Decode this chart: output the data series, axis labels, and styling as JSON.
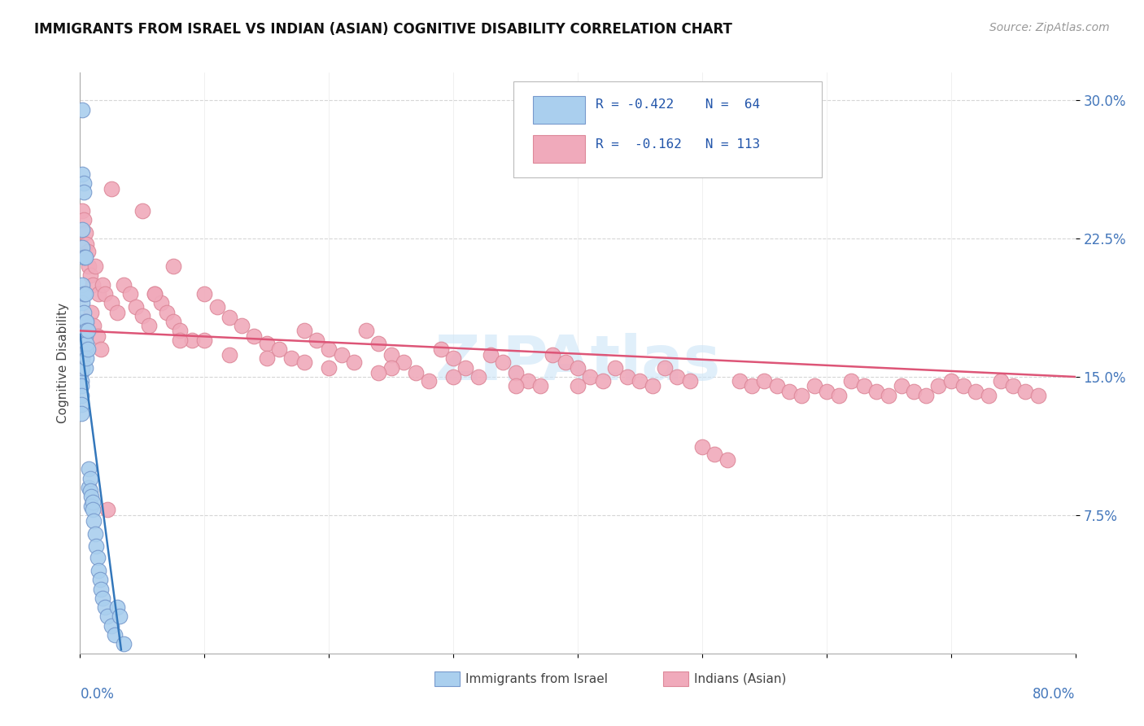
{
  "title": "IMMIGRANTS FROM ISRAEL VS INDIAN (ASIAN) COGNITIVE DISABILITY CORRELATION CHART",
  "source": "Source: ZipAtlas.com",
  "ylabel": "Cognitive Disability",
  "xrange": [
    0.0,
    0.8
  ],
  "yrange": [
    0.0,
    0.315
  ],
  "ytick_vals": [
    0.075,
    0.15,
    0.225,
    0.3
  ],
  "ytick_labels": [
    "7.5%",
    "15.0%",
    "22.5%",
    "30.0%"
  ],
  "legend_r1": "R = -0.422",
  "legend_n1": "N =  64",
  "legend_r2": "R =  -0.162",
  "legend_n2": "N = 113",
  "color_israel": "#aacfee",
  "color_india": "#f0aabb",
  "color_line_israel": "#3377bb",
  "color_line_india": "#dd5577",
  "watermark": "ZIPAtlas",
  "israel_line_x": [
    0.0,
    0.033
  ],
  "israel_line_y": [
    0.173,
    0.002
  ],
  "india_line_x": [
    0.0,
    0.8
  ],
  "india_line_y": [
    0.175,
    0.15
  ],
  "israel_x": [
    0.001,
    0.001,
    0.001,
    0.001,
    0.001,
    0.001,
    0.001,
    0.001,
    0.001,
    0.001,
    0.002,
    0.002,
    0.002,
    0.002,
    0.002,
    0.002,
    0.002,
    0.002,
    0.002,
    0.002,
    0.002,
    0.002,
    0.003,
    0.003,
    0.003,
    0.003,
    0.003,
    0.003,
    0.003,
    0.004,
    0.004,
    0.004,
    0.004,
    0.004,
    0.004,
    0.005,
    0.005,
    0.005,
    0.005,
    0.006,
    0.006,
    0.007,
    0.007,
    0.008,
    0.008,
    0.009,
    0.009,
    0.01,
    0.01,
    0.011,
    0.012,
    0.013,
    0.014,
    0.015,
    0.016,
    0.017,
    0.018,
    0.02,
    0.022,
    0.025,
    0.028,
    0.03,
    0.032,
    0.035
  ],
  "israel_y": [
    0.165,
    0.162,
    0.158,
    0.155,
    0.152,
    0.148,
    0.145,
    0.14,
    0.135,
    0.13,
    0.295,
    0.26,
    0.23,
    0.22,
    0.2,
    0.19,
    0.18,
    0.175,
    0.17,
    0.165,
    0.16,
    0.155,
    0.255,
    0.25,
    0.215,
    0.195,
    0.185,
    0.175,
    0.165,
    0.215,
    0.195,
    0.18,
    0.172,
    0.165,
    0.155,
    0.18,
    0.175,
    0.168,
    0.16,
    0.175,
    0.165,
    0.1,
    0.09,
    0.095,
    0.088,
    0.085,
    0.08,
    0.082,
    0.078,
    0.072,
    0.065,
    0.058,
    0.052,
    0.045,
    0.04,
    0.035,
    0.03,
    0.025,
    0.02,
    0.015,
    0.01,
    0.025,
    0.02,
    0.005
  ],
  "india_x": [
    0.002,
    0.003,
    0.004,
    0.005,
    0.006,
    0.007,
    0.008,
    0.01,
    0.012,
    0.015,
    0.018,
    0.02,
    0.025,
    0.03,
    0.035,
    0.04,
    0.045,
    0.05,
    0.055,
    0.06,
    0.065,
    0.07,
    0.075,
    0.08,
    0.09,
    0.1,
    0.11,
    0.12,
    0.13,
    0.14,
    0.15,
    0.16,
    0.17,
    0.18,
    0.19,
    0.2,
    0.21,
    0.22,
    0.23,
    0.24,
    0.25,
    0.26,
    0.27,
    0.28,
    0.29,
    0.3,
    0.31,
    0.32,
    0.33,
    0.34,
    0.35,
    0.36,
    0.37,
    0.38,
    0.39,
    0.4,
    0.41,
    0.42,
    0.43,
    0.44,
    0.45,
    0.46,
    0.47,
    0.48,
    0.49,
    0.5,
    0.51,
    0.52,
    0.53,
    0.54,
    0.55,
    0.56,
    0.57,
    0.58,
    0.59,
    0.6,
    0.61,
    0.62,
    0.63,
    0.64,
    0.65,
    0.66,
    0.67,
    0.68,
    0.69,
    0.7,
    0.71,
    0.72,
    0.73,
    0.74,
    0.75,
    0.76,
    0.77,
    0.025,
    0.05,
    0.075,
    0.1,
    0.15,
    0.2,
    0.25,
    0.3,
    0.35,
    0.4,
    0.06,
    0.08,
    0.12,
    0.18,
    0.24,
    0.009,
    0.011,
    0.014,
    0.017,
    0.022
  ],
  "india_y": [
    0.24,
    0.235,
    0.228,
    0.222,
    0.218,
    0.21,
    0.205,
    0.2,
    0.21,
    0.195,
    0.2,
    0.195,
    0.19,
    0.185,
    0.2,
    0.195,
    0.188,
    0.183,
    0.178,
    0.195,
    0.19,
    0.185,
    0.18,
    0.175,
    0.17,
    0.195,
    0.188,
    0.182,
    0.178,
    0.172,
    0.168,
    0.165,
    0.16,
    0.175,
    0.17,
    0.165,
    0.162,
    0.158,
    0.175,
    0.168,
    0.162,
    0.158,
    0.152,
    0.148,
    0.165,
    0.16,
    0.155,
    0.15,
    0.162,
    0.158,
    0.152,
    0.148,
    0.145,
    0.162,
    0.158,
    0.155,
    0.15,
    0.148,
    0.155,
    0.15,
    0.148,
    0.145,
    0.155,
    0.15,
    0.148,
    0.112,
    0.108,
    0.105,
    0.148,
    0.145,
    0.148,
    0.145,
    0.142,
    0.14,
    0.145,
    0.142,
    0.14,
    0.148,
    0.145,
    0.142,
    0.14,
    0.145,
    0.142,
    0.14,
    0.145,
    0.148,
    0.145,
    0.142,
    0.14,
    0.148,
    0.145,
    0.142,
    0.14,
    0.252,
    0.24,
    0.21,
    0.17,
    0.16,
    0.155,
    0.155,
    0.15,
    0.145,
    0.145,
    0.195,
    0.17,
    0.162,
    0.158,
    0.152,
    0.185,
    0.178,
    0.172,
    0.165,
    0.078
  ]
}
